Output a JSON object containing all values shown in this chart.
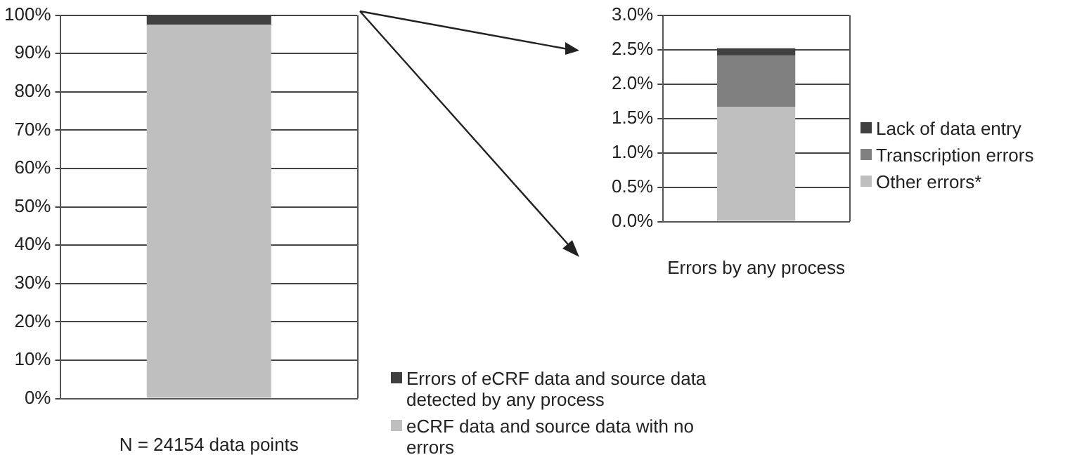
{
  "chart_data": [
    {
      "type": "bar",
      "xlabel": "N = 24154 data points",
      "categories": [
        null
      ],
      "stacked": true,
      "series": [
        {
          "name": "eCRF data and source data with no errors",
          "color": "#bfbfbf",
          "values": [
            97.5
          ]
        },
        {
          "name": "Errors of eCRF data and source data detected by any process",
          "color": "#404040",
          "values": [
            2.5
          ]
        }
      ],
      "ylim": [
        0,
        100
      ],
      "yticks": [
        {
          "value": 0,
          "label": "0%"
        },
        {
          "value": 10,
          "label": "10%"
        },
        {
          "value": 20,
          "label": "20%"
        },
        {
          "value": 30,
          "label": "30%"
        },
        {
          "value": 40,
          "label": "40%"
        },
        {
          "value": 50,
          "label": "50%"
        },
        {
          "value": 60,
          "label": "60%"
        },
        {
          "value": 70,
          "label": "70%"
        },
        {
          "value": 80,
          "label": "80%"
        },
        {
          "value": 90,
          "label": "90%"
        },
        {
          "value": 100,
          "label": "100%"
        }
      ],
      "grid": "y",
      "legend": "bottom right"
    },
    {
      "type": "bar",
      "xlabel": "Errors by any process",
      "categories": [
        null
      ],
      "stacked": true,
      "series": [
        {
          "name": "Other errors*",
          "color": "#bfbfbf",
          "values": [
            1.67
          ]
        },
        {
          "name": "Transcription errors",
          "color": "#808080",
          "values": [
            0.74
          ]
        },
        {
          "name": "Lack of data entry",
          "color": "#404040",
          "values": [
            0.11
          ]
        }
      ],
      "ylim": [
        0,
        3
      ],
      "yticks": [
        {
          "value": 0,
          "label": "0.0%"
        },
        {
          "value": 0.5,
          "label": "0.5%"
        },
        {
          "value": 1,
          "label": "1.0%"
        },
        {
          "value": 1.5,
          "label": "1.5%"
        },
        {
          "value": 2,
          "label": "2.0%"
        },
        {
          "value": 2.5,
          "label": "2.5%"
        },
        {
          "value": 3,
          "label": "3.0%"
        }
      ],
      "grid": "y",
      "legend": "right"
    }
  ]
}
